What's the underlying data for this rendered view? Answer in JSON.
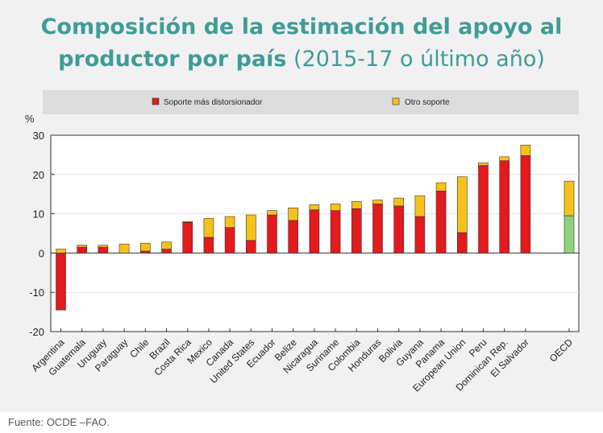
{
  "title": {
    "line1": "Composición de la estimación del apoyo al",
    "line2_bold": "productor por país",
    "line2_rest": " (2015-17 o último año)"
  },
  "source": "Fuente: OCDE –FAO.",
  "colors": {
    "distorting": "#e41a1c",
    "other": "#f6c21a",
    "oecd_distorting": "#8fd27b",
    "background": "#f1f1f1",
    "legend_bar": "#dcdcdc",
    "title": "#3f9c97"
  },
  "chart_data": {
    "type": "bar",
    "stacked": true,
    "title": "Composición de la estimación del apoyo al productor por país (2015-17 o último año)",
    "ylabel": "%",
    "ylim": [
      -20,
      30
    ],
    "yticks": [
      -20,
      -10,
      0,
      10,
      20,
      30
    ],
    "legend_position": "top",
    "categories": [
      "Argentina",
      "Guatemala",
      "Uruguay",
      "Paraguay",
      "Chile",
      "Brazil",
      "Costa Rica",
      "Mexico",
      "Canada",
      "United States",
      "Ecuador",
      "Belize",
      "Nicaragua",
      "Suriname",
      "Colombia",
      "Honduras",
      "Bolivia",
      "Guyana",
      "Panama",
      "European Union",
      "Peru",
      "Dominican Rep.",
      "El Salvador",
      "OECD"
    ],
    "series": [
      {
        "name": "Soporte más distorsionador",
        "values": [
          -14.5,
          1.5,
          1.5,
          0.0,
          0.5,
          1.0,
          7.8,
          4.0,
          6.5,
          3.2,
          9.7,
          8.3,
          11.0,
          10.8,
          11.3,
          12.5,
          12.0,
          9.3,
          15.8,
          5.2,
          22.3,
          23.5,
          24.8,
          9.5
        ]
      },
      {
        "name": "Otro soporte",
        "values": [
          1.0,
          0.5,
          0.5,
          2.3,
          2.0,
          1.8,
          0.2,
          4.8,
          2.8,
          6.5,
          1.1,
          3.2,
          1.3,
          1.7,
          1.8,
          1.0,
          2.0,
          5.3,
          2.1,
          14.2,
          0.7,
          1.0,
          2.7,
          8.8
        ]
      }
    ]
  }
}
